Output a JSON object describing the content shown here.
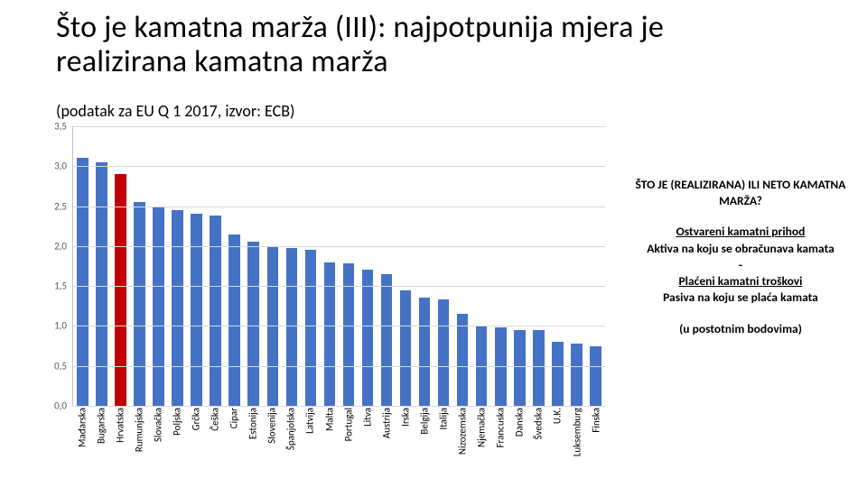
{
  "title": "Što je kamatna marža (III): najpotpunija mjera je realizirana kamatna marža",
  "subtitle": "(podatak za EU Q 1 2017, izvor: ECB)",
  "chart": {
    "type": "bar",
    "ylim": [
      0,
      3.5
    ],
    "ytick_step": 0.5,
    "yticks": [
      "0,0",
      "0,5",
      "1,0",
      "1,5",
      "2,0",
      "2,5",
      "3,0",
      "3,5"
    ],
    "bar_color_default": "#4472c4",
    "bar_color_highlight": "#c00000",
    "grid_color": "#d9d9d9",
    "axis_color": "#bfbfbf",
    "label_fontsize": 11,
    "categories": [
      "Mađarska",
      "Bugarska",
      "Hrvatska",
      "Rumunjska",
      "Slovačka",
      "Poljska",
      "Grčka",
      "Češka",
      "Cipar",
      "Estonija",
      "Slovenija",
      "Španjolska",
      "Latvija",
      "Malta",
      "Portugal",
      "Litva",
      "Austrija",
      "Irska",
      "Belgija",
      "Italija",
      "Nizozemska",
      "Njemačka",
      "Francuska",
      "Danska",
      "Švedska",
      "U.K.",
      "Luksemburg",
      "Finska"
    ],
    "values": [
      3.1,
      3.05,
      2.9,
      2.55,
      2.5,
      2.45,
      2.4,
      2.38,
      2.15,
      2.05,
      2.0,
      1.98,
      1.95,
      1.8,
      1.78,
      1.7,
      1.65,
      1.45,
      1.35,
      1.33,
      1.15,
      1.0,
      0.98,
      0.95,
      0.95,
      0.8,
      0.78,
      0.75
    ],
    "highlight_index": 2
  },
  "rhs": {
    "heading": "ŠTO JE (REALIZIRANA) ILI NETO KAMATNA MARŽA?",
    "line1_u": "Ostvareni kamatni prihod",
    "line2_b": "Aktiva na koju se obračunava kamata",
    "minus": "-",
    "line3_u": "Plaćeni kamatni troškovi",
    "line4_b": "Pasiva na koju se plaća kamata",
    "line5_b": "(u postotnim bodovima)"
  }
}
